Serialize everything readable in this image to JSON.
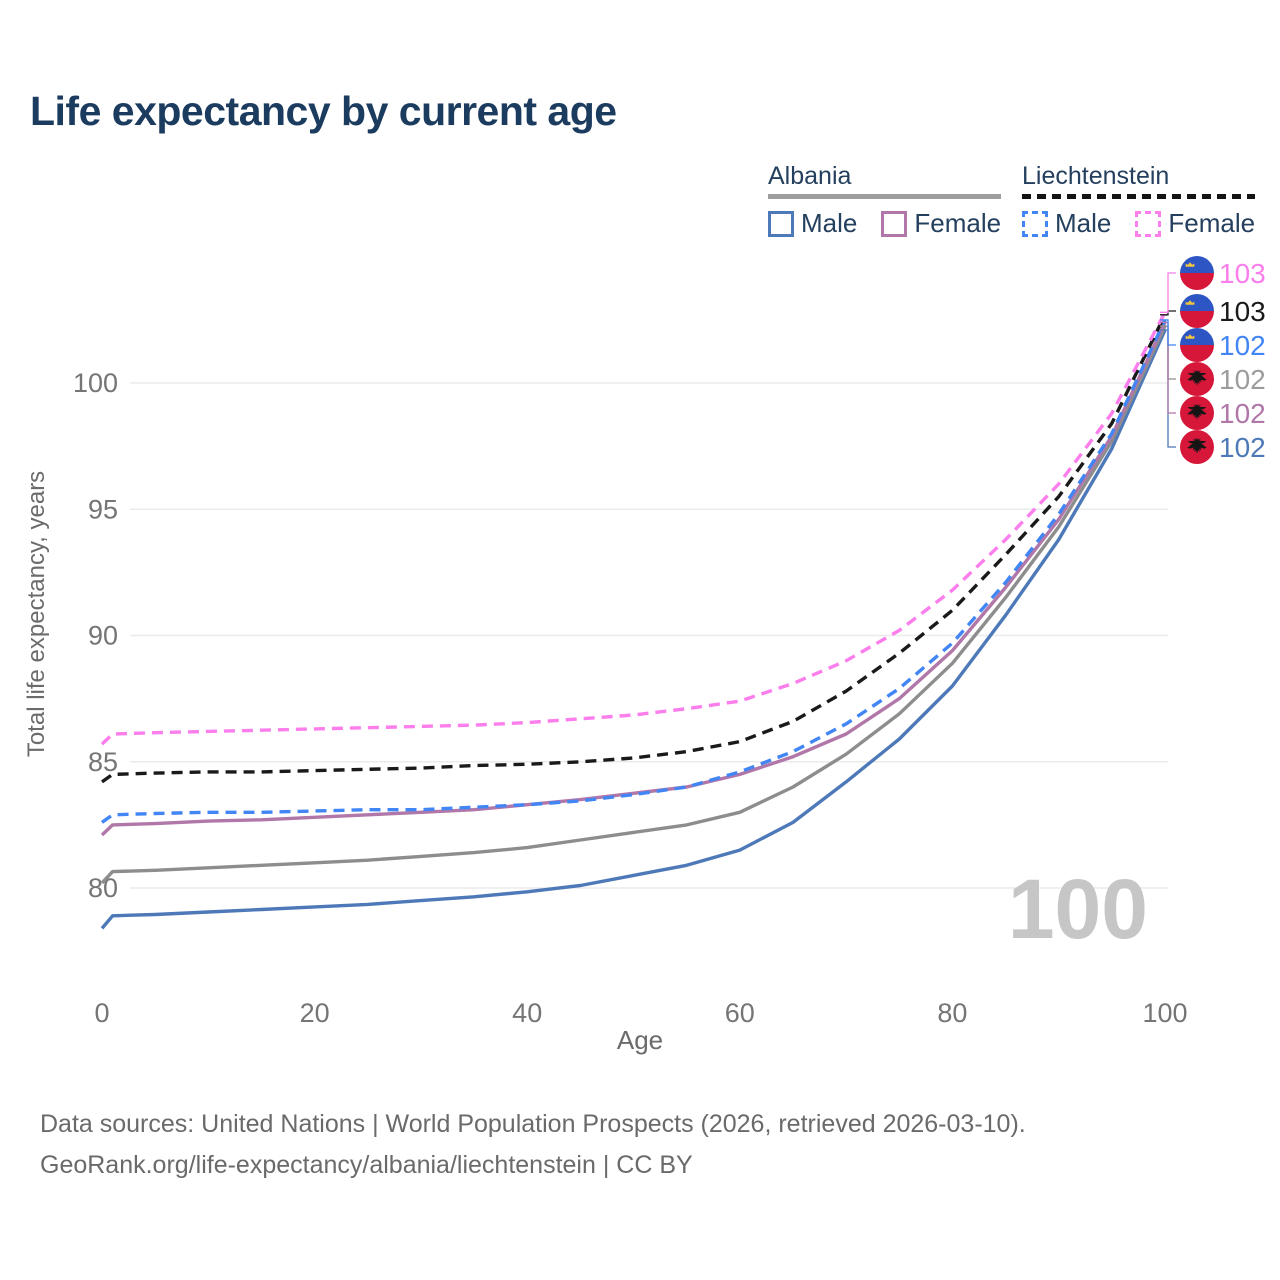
{
  "title": "Life expectancy by current age",
  "legend": {
    "groups": [
      {
        "label": "Albania",
        "line_style": "solid",
        "underline_color": "#9e9e9e",
        "items": [
          {
            "label": "Male",
            "color": "#4e79b8",
            "dash": false
          },
          {
            "label": "Female",
            "color": "#b077a8",
            "dash": false
          }
        ]
      },
      {
        "label": "Liechtenstein",
        "line_style": "dashed",
        "underline_color": "#141414",
        "items": [
          {
            "label": "Male",
            "color": "#4285f4",
            "dash": true
          },
          {
            "label": "Female",
            "color": "#fb7eec",
            "dash": true
          }
        ]
      }
    ]
  },
  "chart_data": {
    "type": "line",
    "title": "Life expectancy by current age",
    "xlabel": "Age",
    "ylabel": "Total life expectancy, years",
    "xlim": [
      0,
      100
    ],
    "ylim": [
      77.5,
      103.5
    ],
    "xticks": [
      0,
      20,
      40,
      60,
      80,
      100
    ],
    "yticks": [
      80,
      85,
      90,
      95,
      100
    ],
    "grid": "horizontal",
    "watermark": "100",
    "x": [
      0,
      1,
      5,
      10,
      15,
      20,
      25,
      30,
      35,
      40,
      45,
      50,
      55,
      60,
      65,
      70,
      75,
      80,
      85,
      90,
      95,
      100
    ],
    "series": [
      {
        "name": "Albania Male",
        "country": "Albania",
        "sex": "male",
        "color": "#4e79b8",
        "dash": false,
        "flag": "albania",
        "end_label": "102",
        "end_row": 5,
        "values": [
          78.4,
          78.9,
          78.95,
          79.05,
          79.15,
          79.25,
          79.35,
          79.5,
          79.65,
          79.85,
          80.1,
          80.5,
          80.9,
          81.5,
          82.6,
          84.2,
          85.9,
          88.0,
          90.8,
          93.8,
          97.4,
          102.1
        ]
      },
      {
        "name": "Albania Total",
        "country": "Albania",
        "sex": "both",
        "color": "#8d8d8d",
        "dash": false,
        "flag": "albania",
        "end_label": "102",
        "end_row": 3,
        "values": [
          80.2,
          80.65,
          80.7,
          80.8,
          80.9,
          81.0,
          81.1,
          81.25,
          81.4,
          81.6,
          81.9,
          82.2,
          82.5,
          83.0,
          84.0,
          85.3,
          86.9,
          88.9,
          91.5,
          94.3,
          97.7,
          102.25
        ]
      },
      {
        "name": "Albania Female",
        "country": "Albania",
        "sex": "female",
        "color": "#b077a8",
        "dash": false,
        "flag": "albania",
        "end_label": "102",
        "end_row": 4,
        "values": [
          82.1,
          82.5,
          82.55,
          82.65,
          82.7,
          82.8,
          82.9,
          83.0,
          83.1,
          83.3,
          83.5,
          83.75,
          84.0,
          84.5,
          85.2,
          86.1,
          87.5,
          89.4,
          91.9,
          94.6,
          97.9,
          102.4
        ]
      },
      {
        "name": "Liechtenstein Male",
        "country": "Liechtenstein",
        "sex": "male",
        "color": "#4285f4",
        "dash": true,
        "flag": "liechtenstein",
        "end_label": "102",
        "end_row": 2,
        "values": [
          82.6,
          82.9,
          82.95,
          83.0,
          83.0,
          83.05,
          83.1,
          83.1,
          83.2,
          83.3,
          83.45,
          83.7,
          84.0,
          84.6,
          85.4,
          86.5,
          87.9,
          89.7,
          92.1,
          94.8,
          98.0,
          102.5
        ]
      },
      {
        "name": "Liechtenstein Total",
        "country": "Liechtenstein",
        "sex": "both",
        "color": "#1a1a1a",
        "dash": true,
        "flag": "liechtenstein",
        "end_label": "103",
        "end_row": 1,
        "values": [
          84.2,
          84.5,
          84.55,
          84.6,
          84.6,
          84.65,
          84.7,
          84.75,
          84.85,
          84.9,
          85.0,
          85.15,
          85.4,
          85.8,
          86.6,
          87.8,
          89.3,
          91.0,
          93.2,
          95.5,
          98.4,
          102.7
        ]
      },
      {
        "name": "Liechtenstein Female",
        "country": "Liechtenstein",
        "sex": "female",
        "color": "#fb7eec",
        "dash": true,
        "flag": "liechtenstein",
        "end_label": "103",
        "end_row": 0,
        "values": [
          85.7,
          86.1,
          86.15,
          86.2,
          86.25,
          86.3,
          86.35,
          86.4,
          86.45,
          86.55,
          86.7,
          86.85,
          87.1,
          87.4,
          88.1,
          89.0,
          90.2,
          91.8,
          93.8,
          96.0,
          98.8,
          102.8
        ]
      }
    ],
    "end_labels": [
      {
        "label": "103",
        "color": "#fb7eec",
        "flag": "liechtenstein"
      },
      {
        "label": "103",
        "color": "#1a1a1a",
        "flag": "liechtenstein"
      },
      {
        "label": "102",
        "color": "#4285f4",
        "flag": "liechtenstein"
      },
      {
        "label": "102",
        "color": "#9c9c9c",
        "flag": "albania"
      },
      {
        "label": "102",
        "color": "#b077a8",
        "flag": "albania"
      },
      {
        "label": "102",
        "color": "#4e79b8",
        "flag": "albania"
      }
    ]
  },
  "flags": {
    "liechtenstein": {
      "top_color": "#2e55c4",
      "bottom_color": "#d6173a",
      "crown_color": "#efc63f"
    },
    "albania": {
      "field_color": "#d6173a",
      "eagle_color": "#151515"
    }
  },
  "footer": {
    "line1": "Data sources: United Nations | World Population Prospects (2026, retrieved 2026-03-10).",
    "line2": "GeoRank.org/life-expectancy/albania/liechtenstein | CC BY"
  }
}
